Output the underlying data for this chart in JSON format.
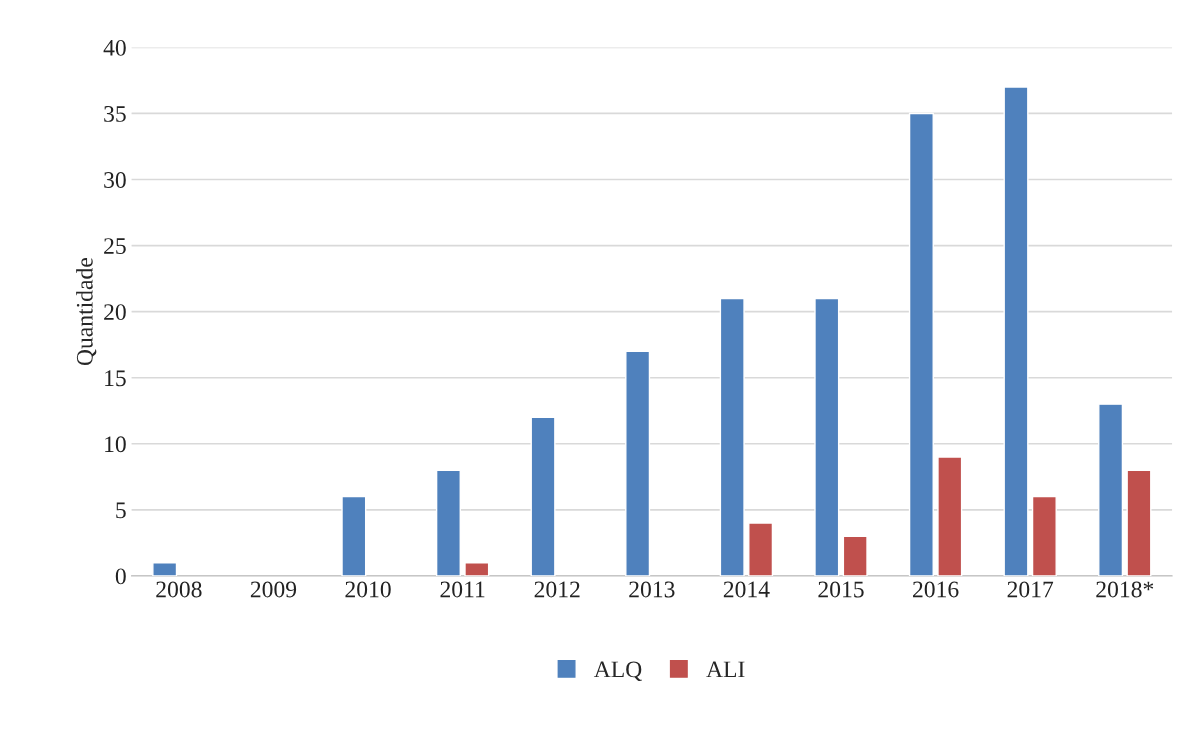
{
  "chart_data": {
    "type": "bar",
    "ylabel": "Quantidade",
    "categories": [
      "2008",
      "2009",
      "2010",
      "2011",
      "2012",
      "2013",
      "2014",
      "2015",
      "2016",
      "2017",
      "2018*"
    ],
    "series": [
      {
        "name": "ALQ",
        "color": "#4f81bd",
        "values": [
          1,
          null,
          6,
          8,
          12,
          17,
          21,
          21,
          35,
          37,
          13
        ]
      },
      {
        "name": "ALI",
        "color": "#c0504d",
        "values": [
          null,
          null,
          null,
          1,
          null,
          null,
          4,
          3,
          9,
          6,
          8
        ]
      }
    ],
    "ylim": [
      0,
      40
    ],
    "yticks": [
      0,
      5,
      10,
      15,
      20,
      25,
      30,
      35,
      40
    ],
    "grid": "y",
    "legend": "bottom"
  }
}
